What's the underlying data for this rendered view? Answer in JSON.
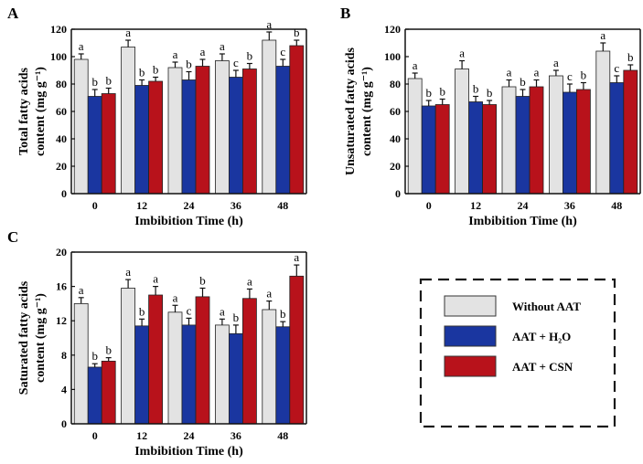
{
  "legend": {
    "without": "Without AAT",
    "h2o": "AAT + H₂O",
    "csn": "AAT + CSN"
  },
  "colors": {
    "without": "#e3e3e3",
    "h2o": "#1a36a0",
    "csn": "#b8121b"
  },
  "chart_data": [
    {
      "type": "bar",
      "panel": "A",
      "ylabel": [
        "Total fatty acids",
        "content (mg g⁻¹)"
      ],
      "xlabel": "Imbibition Time (h)",
      "categories": [
        "0",
        "12",
        "24",
        "36",
        "48"
      ],
      "ylim": [
        0,
        120
      ],
      "yticks": [
        0,
        20,
        40,
        60,
        80,
        100,
        120
      ],
      "series": [
        {
          "name": "Without AAT",
          "values": [
            98,
            107,
            92,
            97,
            112
          ],
          "errors": [
            4,
            5,
            4,
            5,
            6
          ],
          "labels": [
            "a",
            "a",
            "a",
            "a",
            "a"
          ]
        },
        {
          "name": "AAT + H₂O",
          "values": [
            71,
            79,
            83,
            85,
            93
          ],
          "errors": [
            5,
            4,
            6,
            5,
            5
          ],
          "labels": [
            "b",
            "b",
            "b",
            "c",
            "c"
          ]
        },
        {
          "name": "AAT + CSN",
          "values": [
            73,
            82,
            93,
            91,
            108
          ],
          "errors": [
            4,
            3,
            5,
            4,
            4
          ],
          "labels": [
            "b",
            "b",
            "a",
            "b",
            "b"
          ]
        }
      ]
    },
    {
      "type": "bar",
      "panel": "B",
      "ylabel": [
        "Unsaturated fatty acids",
        "content (mg g⁻¹)"
      ],
      "xlabel": "Imbibition Time (h)",
      "categories": [
        "0",
        "12",
        "24",
        "36",
        "48"
      ],
      "ylim": [
        0,
        120
      ],
      "yticks": [
        0,
        20,
        40,
        60,
        80,
        100,
        120
      ],
      "series": [
        {
          "name": "Without AAT",
          "values": [
            84,
            91,
            78,
            86,
            104
          ],
          "errors": [
            4,
            6,
            5,
            4,
            6
          ],
          "labels": [
            "a",
            "a",
            "a",
            "a",
            "a"
          ]
        },
        {
          "name": "AAT + H₂O",
          "values": [
            64,
            67,
            71,
            74,
            81
          ],
          "errors": [
            4,
            4,
            5,
            6,
            5
          ],
          "labels": [
            "b",
            "b",
            "b",
            "c",
            "c"
          ]
        },
        {
          "name": "AAT + CSN",
          "values": [
            65,
            65,
            78,
            76,
            90
          ],
          "errors": [
            4,
            3,
            5,
            5,
            4
          ],
          "labels": [
            "b",
            "b",
            "a",
            "b",
            "b"
          ]
        }
      ]
    },
    {
      "type": "bar",
      "panel": "C",
      "ylabel": [
        "Saturated fatty acids",
        "content (mg g⁻¹)"
      ],
      "xlabel": "Imbibition Time (h)",
      "categories": [
        "0",
        "12",
        "24",
        "36",
        "48"
      ],
      "ylim": [
        0,
        20
      ],
      "yticks": [
        0,
        4,
        8,
        12,
        16,
        20
      ],
      "series": [
        {
          "name": "Without AAT",
          "values": [
            14.0,
            15.8,
            13.0,
            11.5,
            13.3
          ],
          "errors": [
            0.7,
            1.0,
            0.8,
            0.7,
            1.0
          ],
          "labels": [
            "a",
            "a",
            "a",
            "a",
            "a"
          ]
        },
        {
          "name": "AAT + H₂O",
          "values": [
            6.6,
            11.4,
            11.5,
            10.5,
            11.3
          ],
          "errors": [
            0.4,
            0.8,
            0.8,
            1.0,
            0.6
          ],
          "labels": [
            "b",
            "b",
            "c",
            "b",
            "b"
          ]
        },
        {
          "name": "AAT + CSN",
          "values": [
            7.3,
            15.0,
            14.8,
            14.6,
            17.2
          ],
          "errors": [
            0.4,
            1.0,
            1.0,
            1.1,
            1.3
          ],
          "labels": [
            "b",
            "a",
            "b",
            "a",
            "a"
          ]
        }
      ]
    }
  ]
}
